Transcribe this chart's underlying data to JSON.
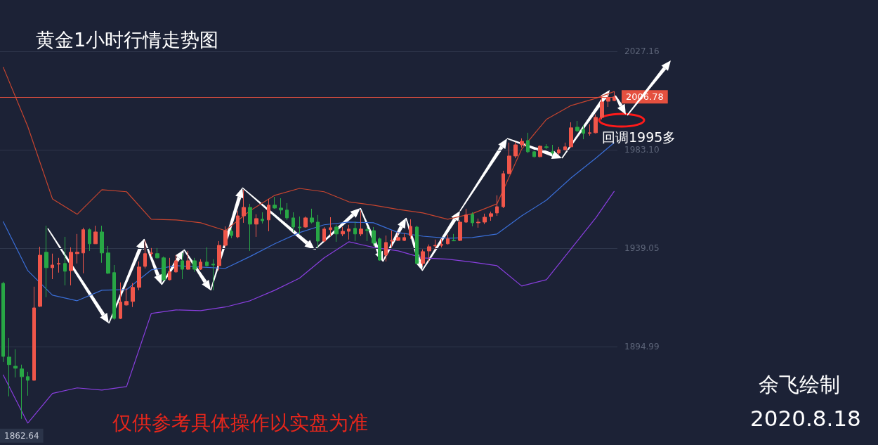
{
  "chart_data": {
    "type": "candlestick",
    "title": "黄金1小时行情走势图",
    "annotations": [
      "回调1995多",
      "仅供参考具体操作以实盘为准",
      "余飞绘制",
      "2020.8.18",
      {
        "text": "1862.64",
        "y": 1862.64
      }
    ],
    "categories": [
      null,
      null,
      null,
      null,
      null,
      null,
      null,
      null,
      null,
      null,
      null,
      null,
      null,
      null,
      null,
      null,
      null,
      null,
      null,
      null,
      null,
      null,
      null,
      null,
      null,
      null,
      null,
      null,
      null,
      null,
      null,
      null,
      null,
      null,
      null,
      null,
      null,
      null,
      null,
      null,
      null,
      null,
      null,
      null,
      null,
      null,
      null,
      null,
      null,
      null,
      null,
      null,
      null,
      null,
      null,
      null,
      null,
      null,
      null,
      null,
      null,
      null,
      null,
      null,
      null,
      null,
      null,
      null,
      null,
      null,
      null,
      null,
      null,
      null,
      null,
      null,
      null,
      null,
      null,
      null,
      null,
      null,
      null,
      null,
      null,
      null,
      null,
      null,
      null,
      null,
      null,
      null,
      null,
      null,
      null,
      null,
      null,
      null,
      null,
      null
    ],
    "ohlc": [
      [
        1923.3,
        1924.0,
        1888.1,
        1890.6
      ],
      [
        1890.3,
        1898.8,
        1872.7,
        1886.9
      ],
      [
        1886.2,
        1893.8,
        1881.2,
        1885.3
      ],
      [
        1885.0,
        1886.9,
        1862.64,
        1881.5
      ],
      [
        1881.5,
        1883.7,
        1873.0,
        1879.9
      ],
      [
        1879.9,
        1921.8,
        1879.9,
        1912.3
      ],
      [
        1913.0,
        1939.7,
        1912.7,
        1935.9
      ],
      [
        1937.2,
        1949.1,
        1917.1,
        1930.3
      ],
      [
        1930.3,
        1936.6,
        1925.2,
        1931.5
      ],
      [
        1931.9,
        1934.7,
        1928.1,
        1932.2
      ],
      [
        1932.2,
        1944.1,
        1922.4,
        1928.7
      ],
      [
        1929.0,
        1939.4,
        1922.4,
        1937.2
      ],
      [
        1936.6,
        1945.4,
        1932.2,
        1937.2
      ],
      [
        1936.9,
        1948.2,
        1927.8,
        1947.3
      ],
      [
        1947.3,
        1947.9,
        1937.8,
        1941.0
      ],
      [
        1941.0,
        1949.1,
        1941.0,
        1946.3
      ],
      [
        1946.3,
        1949.1,
        1932.5,
        1936.9
      ],
      [
        1936.9,
        1940.0,
        1927.5,
        1927.8
      ],
      [
        1928.1,
        1931.5,
        1907.0,
        1907.6
      ],
      [
        1907.6,
        1923.7,
        1907.3,
        1914.9
      ],
      [
        1913.6,
        1921.1,
        1913.3,
        1915.2
      ],
      [
        1915.2,
        1923.4,
        1912.7,
        1921.5
      ],
      [
        1921.5,
        1933.1,
        1920.2,
        1930.6
      ],
      [
        1930.9,
        1942.5,
        1930.0,
        1936.6
      ],
      [
        1936.6,
        1939.1,
        1935.3,
        1936.9
      ],
      [
        1936.6,
        1939.1,
        1934.4,
        1934.7
      ],
      [
        1934.7,
        1935.3,
        1924.3,
        1924.9
      ],
      [
        1924.9,
        1934.7,
        1924.6,
        1928.4
      ],
      [
        1928.4,
        1935.9,
        1928.1,
        1933.4
      ],
      [
        1933.4,
        1936.9,
        1925.2,
        1929.6
      ],
      [
        1929.6,
        1937.8,
        1929.3,
        1933.4
      ],
      [
        1933.4,
        1934.7,
        1928.4,
        1929.6
      ],
      [
        1929.6,
        1934.1,
        1929.3,
        1932.8
      ],
      [
        1932.8,
        1939.4,
        1930.9,
        1931.2
      ],
      [
        1931.9,
        1934.1,
        1920.2,
        1931.5
      ],
      [
        1931.2,
        1942.2,
        1929.0,
        1940.3
      ],
      [
        1940.3,
        1948.8,
        1939.4,
        1946.9
      ],
      [
        1946.6,
        1947.9,
        1943.5,
        1944.7
      ],
      [
        1944.1,
        1955.8,
        1943.5,
        1953.5
      ],
      [
        1953.5,
        1965.2,
        1950.4,
        1957.3
      ],
      [
        1957.3,
        1958.9,
        1937.8,
        1949.8
      ],
      [
        1949.8,
        1954.2,
        1944.1,
        1952.3
      ],
      [
        1952.0,
        1955.1,
        1950.1,
        1951.3
      ],
      [
        1951.7,
        1961.1,
        1946.6,
        1958.3
      ],
      [
        1958.3,
        1962.0,
        1956.7,
        1957.0
      ],
      [
        1957.0,
        1961.4,
        1954.2,
        1956.1
      ],
      [
        1956.1,
        1959.2,
        1951.7,
        1952.6
      ],
      [
        1952.6,
        1955.1,
        1946.3,
        1948.5
      ],
      [
        1948.5,
        1953.2,
        1945.4,
        1948.2
      ],
      [
        1948.5,
        1953.2,
        1948.2,
        1952.6
      ],
      [
        1952.6,
        1956.7,
        1950.1,
        1950.7
      ],
      [
        1950.7,
        1953.9,
        1939.1,
        1942.2
      ],
      [
        1942.2,
        1948.5,
        1941.9,
        1947.6
      ],
      [
        1947.3,
        1952.9,
        1944.4,
        1948.2
      ],
      [
        1948.5,
        1949.5,
        1941.9,
        1945.4
      ],
      [
        1945.4,
        1948.5,
        1944.4,
        1946.6
      ],
      [
        1946.6,
        1949.5,
        1942.9,
        1947.6
      ],
      [
        1947.9,
        1951.0,
        1942.2,
        1945.4
      ],
      [
        1945.4,
        1955.8,
        1944.4,
        1947.6
      ],
      [
        1947.3,
        1948.8,
        1942.2,
        1946.9
      ],
      [
        1946.9,
        1948.5,
        1940.0,
        1941.3
      ],
      [
        1943.2,
        1943.8,
        1933.4,
        1933.7
      ],
      [
        1935.9,
        1944.7,
        1933.1,
        1941.6
      ],
      [
        1942.2,
        1946.9,
        1939.4,
        1942.5
      ],
      [
        1942.5,
        1946.3,
        1942.2,
        1943.8
      ],
      [
        1942.5,
        1945.7,
        1942.2,
        1943.8
      ],
      [
        1944.7,
        1952.0,
        1943.2,
        1948.8
      ],
      [
        1948.5,
        1949.1,
        1931.9,
        1932.2
      ],
      [
        1932.2,
        1938.5,
        1931.2,
        1937.5
      ],
      [
        1937.8,
        1940.7,
        1932.8,
        1939.7
      ],
      [
        1940.0,
        1942.9,
        1938.5,
        1940.3
      ],
      [
        1940.3,
        1943.2,
        1939.4,
        1940.7
      ],
      [
        1941.0,
        1945.1,
        1940.7,
        1943.2
      ],
      [
        1942.5,
        1945.4,
        1942.2,
        1942.3
      ],
      [
        1942.5,
        1951.7,
        1942.2,
        1950.7
      ],
      [
        1950.7,
        1956.7,
        1950.4,
        1953.9
      ],
      [
        1954.2,
        1955.1,
        1948.8,
        1950.4
      ],
      [
        1950.4,
        1952.3,
        1948.2,
        1950.7
      ],
      [
        1950.7,
        1954.5,
        1949.8,
        1952.9
      ],
      [
        1953.2,
        1955.4,
        1951.3,
        1954.5
      ],
      [
        1954.8,
        1962.7,
        1953.5,
        1957.6
      ],
      [
        1957.6,
        1973.7,
        1957.0,
        1972.4
      ],
      [
        1972.4,
        1986.3,
        1972.1,
        1980.3
      ],
      [
        1980.3,
        1986.6,
        1979.3,
        1985.3
      ],
      [
        1985.3,
        1988.2,
        1984.1,
        1986.9
      ],
      [
        1987.2,
        1990.7,
        1981.6,
        1982.2
      ],
      [
        1982.2,
        1982.5,
        1979.7,
        1980.0
      ],
      [
        1980.0,
        1985.0,
        1979.7,
        1984.7
      ],
      [
        1984.4,
        1985.6,
        1983.4,
        1984.1
      ],
      [
        1982.2,
        1985.3,
        1980.9,
        1981.6
      ],
      [
        1981.6,
        1984.4,
        1980.9,
        1983.1
      ],
      [
        1983.1,
        1986.3,
        1982.8,
        1984.4
      ],
      [
        1984.4,
        1995.4,
        1984.1,
        1992.9
      ],
      [
        1993.2,
        1996.0,
        1991.0,
        1991.6
      ],
      [
        1992.2,
        1994.1,
        1987.8,
        1990.4
      ],
      [
        1990.4,
        1994.5,
        1989.4,
        1990.7
      ],
      [
        1990.7,
        1998.9,
        1990.4,
        1997.6
      ],
      [
        1997.6,
        2007.3,
        1996.7,
        2004.5
      ],
      [
        2004.8,
        2008.3,
        2002.3,
        2006.4
      ],
      [
        2005.1,
        2009.2,
        2004.8,
        2006.78
      ]
    ],
    "series": [
      {
        "type": "line",
        "color": "#c8452f",
        "values": [
          2020.2,
          null,
          null,
          null,
          1993.5,
          null,
          null,
          null,
          1961.1,
          null,
          null,
          null,
          1954.2,
          null,
          null,
          null,
          1965.2,
          null,
          null,
          null,
          1964.3,
          null,
          null,
          null,
          1952.0,
          null,
          null,
          null,
          1951.7,
          null,
          null,
          null,
          1950.4,
          null,
          null,
          null,
          1946.9,
          null,
          null,
          null,
          1955.8,
          null,
          null,
          null,
          1962.7,
          null,
          null,
          null,
          1965.8,
          null,
          null,
          null,
          1964.3,
          null,
          null,
          null,
          1959.8,
          null,
          null,
          null,
          1958.3,
          null,
          null,
          null,
          1956.4,
          null,
          null,
          null,
          1954.8,
          null,
          null,
          null,
          1952.0,
          null,
          null,
          null,
          1954.5,
          null,
          null,
          null,
          1958.9,
          null,
          null,
          null,
          1983.4,
          null,
          null,
          null,
          1996.7,
          null,
          null,
          null,
          2002.9,
          null,
          null,
          null,
          2006.1,
          null,
          null,
          2009.2
        ]
      },
      {
        "type": "line",
        "color": "#3a6fd8",
        "values": [
          1951.0,
          null,
          null,
          null,
          1929.0,
          null,
          null,
          null,
          1918.0,
          null,
          null,
          null,
          1915.5,
          null,
          null,
          null,
          1920.2,
          null,
          null,
          null,
          1920.5,
          null,
          null,
          null,
          1929.3,
          null,
          null,
          null,
          1931.2,
          null,
          null,
          null,
          1930.6,
          null,
          null,
          null,
          1930.0,
          null,
          null,
          null,
          1935.3,
          null,
          null,
          null,
          1941.0,
          null,
          null,
          null,
          1946.0,
          null,
          null,
          null,
          1949.5,
          null,
          null,
          null,
          1950.7,
          null,
          null,
          null,
          1950.4,
          null,
          null,
          null,
          1946.0,
          null,
          null,
          null,
          1944.4,
          null,
          null,
          null,
          1943.5,
          null,
          null,
          null,
          1943.8,
          null,
          null,
          null,
          1945.4,
          null,
          null,
          null,
          1953.5,
          null,
          null,
          null,
          1960.5,
          null,
          null,
          null,
          1970.5,
          null,
          null,
          null,
          1979.3,
          null,
          null,
          1986.3
        ]
      },
      {
        "type": "line",
        "color": "#8a3fe0",
        "values": [
          1882.4,
          null,
          null,
          null,
          1860.7,
          null,
          null,
          null,
          1874.0,
          null,
          null,
          null,
          1876.5,
          null,
          null,
          null,
          1875.5,
          null,
          null,
          null,
          1877.1,
          null,
          null,
          null,
          1909.8,
          null,
          null,
          null,
          1911.4,
          null,
          null,
          null,
          1911.1,
          null,
          null,
          null,
          1912.7,
          null,
          null,
          null,
          1915.5,
          null,
          null,
          null,
          1920.2,
          null,
          null,
          null,
          1925.6,
          null,
          null,
          null,
          1934.7,
          null,
          null,
          null,
          1941.9,
          null,
          null,
          null,
          1939.4,
          null,
          null,
          null,
          1937.8,
          null,
          null,
          null,
          1934.7,
          null,
          null,
          null,
          1934.1,
          null,
          null,
          null,
          1932.8,
          null,
          null,
          null,
          1931.2,
          null,
          null,
          null,
          1922.1,
          null,
          null,
          null,
          1924.9,
          null,
          null,
          null,
          1938.8,
          null,
          null,
          null,
          1952.6,
          null,
          null,
          1964.6
        ]
      }
    ],
    "ylim": [
      1850.93,
      2050.13
    ],
    "yticks": [
      1894.99,
      1939.05,
      {
        "value": 1983.1,
        "label": "1983.10"
      },
      2027.16
    ],
    "ref_lines": [
      {
        "axis": "y",
        "value": 2006.78,
        "label": "2006.78",
        "color": "#e5503f"
      }
    ],
    "grid": "y",
    "tick_labels": "y"
  }
}
